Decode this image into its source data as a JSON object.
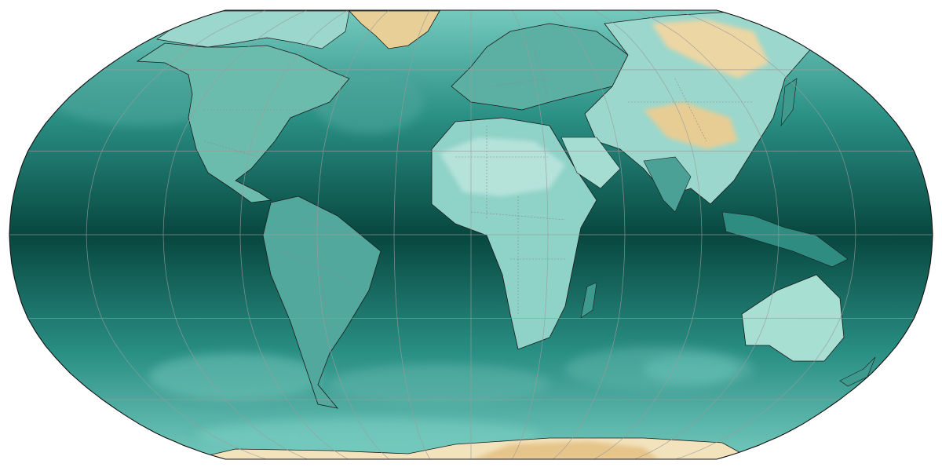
{
  "map": {
    "projection": "robinson",
    "central_longitude": 0,
    "graticule": {
      "lon_step_deg": 30,
      "lat_step_deg": 30,
      "color": "#9c9c9c"
    },
    "field": {
      "colormap": "BrBG",
      "ocean_low_color": "#07473f",
      "ocean_mid_color": "#2a8f84",
      "ocean_high_color": "#7ccfc3",
      "land_dry_color": "#f1dcac",
      "land_desert_color": "#e3c07f",
      "snow_color": "#f6f4ee"
    },
    "features": [
      "coastlines",
      "country-borders",
      "graticule"
    ],
    "coastline_color": "#1a1a1a",
    "border_color": "#8a8a8a",
    "outline_color": "#111111"
  }
}
